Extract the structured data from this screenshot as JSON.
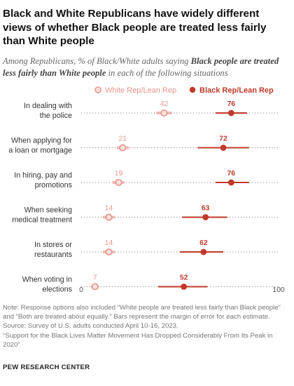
{
  "header": {
    "title": "Black and White Republicans have widely different views of whether Black people are treated less fairly than White people",
    "subtitle_pre": "Among Republicans, % of Black/White adults saying ",
    "subtitle_bold": "Black people are treated less fairly than White people",
    "subtitle_post": " in each of the following situations"
  },
  "chart_data": {
    "type": "dot",
    "xlim": [
      0,
      100
    ],
    "x_tick_labels": [
      "0",
      "100"
    ],
    "grid": false,
    "legend_position": "top",
    "categories": [
      [
        "In dealing with",
        "the police"
      ],
      [
        "When applying for",
        "a loan or mortgage"
      ],
      [
        "In hiring, pay and",
        "promotions"
      ],
      [
        "When seeking",
        "medical treatment"
      ],
      [
        "In stores or",
        "restaurants"
      ],
      [
        "When voting in",
        "elections"
      ]
    ],
    "series": [
      {
        "name": "White Rep/Lean Rep",
        "color": "#e8958d",
        "values": [
          42,
          21,
          19,
          14,
          14,
          7
        ],
        "error_range": [
          [
            38,
            46
          ],
          [
            18,
            24
          ],
          [
            16,
            22
          ],
          [
            11,
            17
          ],
          [
            11,
            17
          ],
          [
            5,
            9
          ]
        ]
      },
      {
        "name": "Black Rep/Lean Rep",
        "color": "#c0392b",
        "values": [
          76,
          72,
          76,
          63,
          62,
          52
        ],
        "error_range": [
          [
            68,
            84
          ],
          [
            59,
            85
          ],
          [
            68,
            85
          ],
          [
            51,
            74
          ],
          [
            50,
            72
          ],
          [
            39,
            64
          ]
        ]
      }
    ]
  },
  "footer": {
    "note": "Note: Response options also included “White people are treated less fairly than Black people” and “Both are treated about equally.” Bars represent the margin of error for each estimate.",
    "source": "Source: Survey of U.S. adults conducted April 10-16, 2023.",
    "report": "“Support for the Black Lives Matter Movement Has Dropped Considerably From Its Peak in 2020”",
    "brand": "PEW RESEARCH CENTER"
  }
}
